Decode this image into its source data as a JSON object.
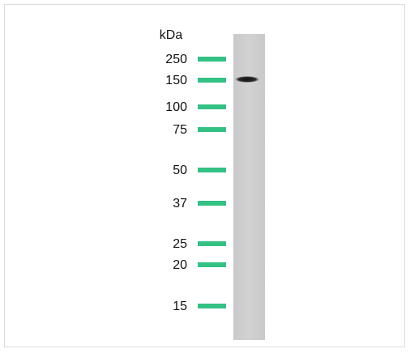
{
  "unit": "kDa",
  "markers": [
    "250",
    "150",
    "100",
    "75",
    "50",
    "37",
    "25",
    "20",
    "15"
  ]
}
